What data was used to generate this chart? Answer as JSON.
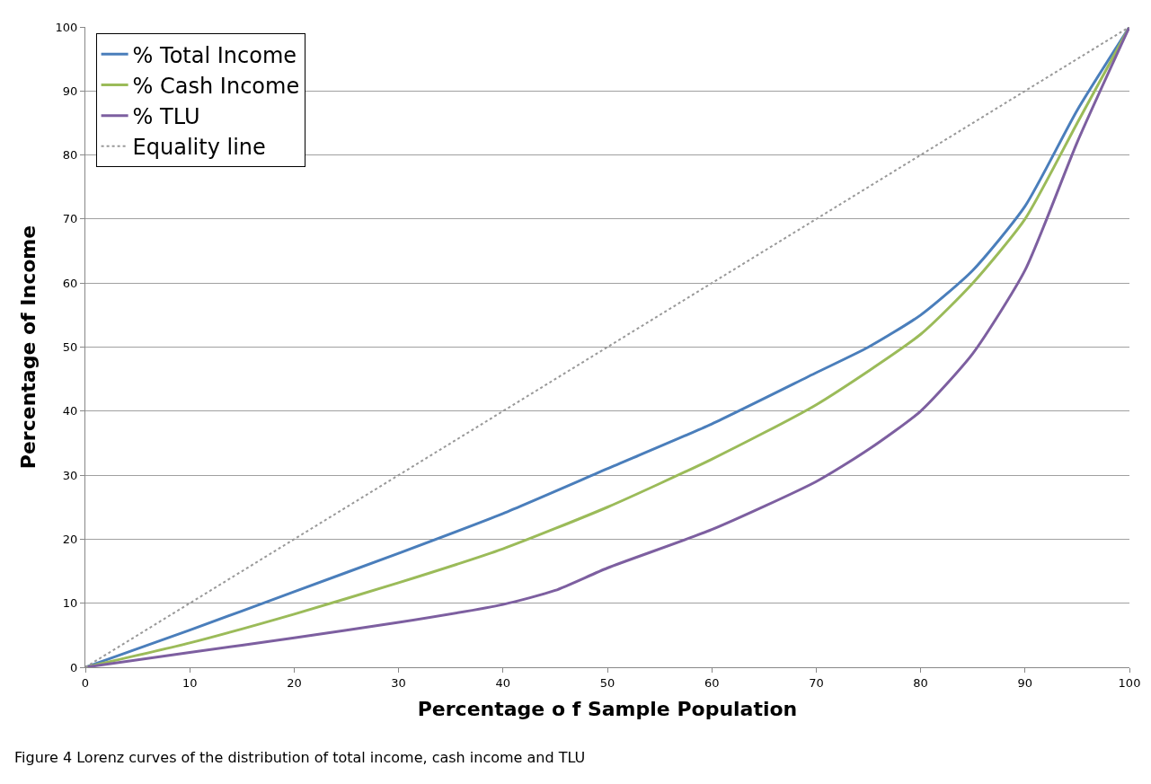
{
  "chart_data": {
    "type": "line",
    "xlabel": "Percentage o f Sample Population",
    "ylabel": "Percentage of Income",
    "annotations": [
      "Figure 4 Lorenz curves of the distribution of total income, cash income and TLU"
    ],
    "xlim": [
      0,
      100
    ],
    "ylim": [
      0,
      100
    ],
    "xticks": [
      0,
      10,
      20,
      30,
      40,
      50,
      60,
      70,
      80,
      90,
      100
    ],
    "yticks": [
      0,
      10,
      20,
      30,
      40,
      50,
      60,
      70,
      80,
      90,
      100
    ],
    "grid": "y",
    "legend": "top left",
    "marker": "none",
    "series": [
      {
        "name": "% Total Income",
        "color": "#4a7ebb",
        "x": [
          0,
          10,
          20,
          30,
          40,
          50,
          60,
          70,
          75,
          80,
          85,
          90,
          95,
          100
        ],
        "values": [
          0,
          5.8,
          11.8,
          17.8,
          24,
          31,
          38,
          46,
          50,
          55,
          62,
          72,
          87,
          100
        ]
      },
      {
        "name": "% Cash Income",
        "color": "#9bbb59",
        "x": [
          0,
          10,
          20,
          30,
          40,
          50,
          60,
          70,
          80,
          85,
          90,
          95,
          100
        ],
        "values": [
          0,
          3.8,
          8.3,
          13.2,
          18.5,
          25,
          32.5,
          41,
          52,
          60,
          70,
          85,
          100
        ]
      },
      {
        "name": "% TLU",
        "color": "#7d5fa0",
        "x": [
          0,
          10,
          20,
          30,
          40,
          45,
          50,
          60,
          70,
          75,
          80,
          85,
          90,
          95,
          100
        ],
        "values": [
          0,
          2.3,
          4.6,
          7,
          9.8,
          12,
          15.5,
          21.5,
          29,
          34,
          40,
          49,
          62,
          82,
          100
        ]
      },
      {
        "name": "Equality line",
        "color": "#999999",
        "line_style": "dotted",
        "x": [
          0,
          100
        ],
        "values": [
          0,
          100
        ]
      }
    ]
  }
}
